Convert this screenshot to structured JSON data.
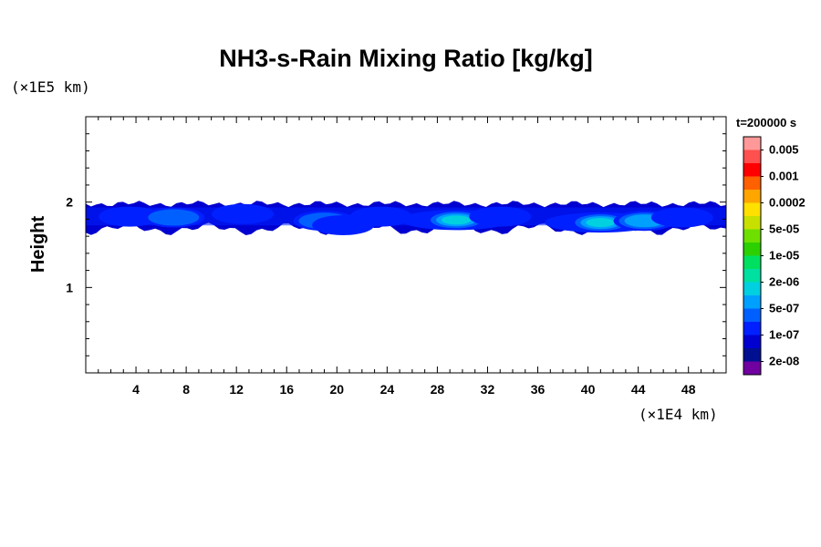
{
  "chart_data": {
    "type": "heatmap",
    "title": "NH3-s-Rain Mixing Ratio [kg/kg]",
    "xlabel": "",
    "ylabel": "Height",
    "x_unit": "(×1E4 km)",
    "y_unit": "(×1E5 km)",
    "time_label": "t=200000 s",
    "xlim": [
      0,
      51
    ],
    "ylim": [
      0,
      3
    ],
    "x_ticks": [
      4,
      8,
      12,
      16,
      20,
      24,
      28,
      32,
      36,
      40,
      44,
      48
    ],
    "y_ticks": [
      1,
      2
    ],
    "colorbar": {
      "labels": [
        "0.005",
        "0.001",
        "0.0002",
        "5e-05",
        "1e-05",
        "2e-06",
        "5e-07",
        "1e-07",
        "2e-08"
      ],
      "colors": [
        "#ff9999",
        "#ff5050",
        "#ff0000",
        "#ff6000",
        "#ffa500",
        "#ffe000",
        "#c8e000",
        "#6ee000",
        "#2cd000",
        "#00e060",
        "#00e0a0",
        "#00d0e0",
        "#00a0ff",
        "#0060ff",
        "#0020ff",
        "#0000d0",
        "#001090",
        "#7000a0"
      ]
    },
    "layer": {
      "top_height": 1.98,
      "bottom_height": 1.62
    },
    "cells": [
      {
        "x": 3.5,
        "y": 1.83,
        "level": 3
      },
      {
        "x": 7.0,
        "y": 1.82,
        "level": 4
      },
      {
        "x": 10.5,
        "y": 1.84,
        "level": 2
      },
      {
        "x": 12.5,
        "y": 1.86,
        "level": 3
      },
      {
        "x": 16.0,
        "y": 1.87,
        "level": 2
      },
      {
        "x": 19.0,
        "y": 1.78,
        "level": 4
      },
      {
        "x": 20.5,
        "y": 1.73,
        "level": 3
      },
      {
        "x": 23.5,
        "y": 1.83,
        "level": 3
      },
      {
        "x": 26.0,
        "y": 1.83,
        "level": 2
      },
      {
        "x": 29.5,
        "y": 1.79,
        "level": 6
      },
      {
        "x": 33.0,
        "y": 1.83,
        "level": 3
      },
      {
        "x": 36.5,
        "y": 1.84,
        "level": 2
      },
      {
        "x": 41.0,
        "y": 1.76,
        "level": 6
      },
      {
        "x": 44.5,
        "y": 1.78,
        "level": 5
      },
      {
        "x": 47.5,
        "y": 1.82,
        "level": 3
      },
      {
        "x": 49.5,
        "y": 1.84,
        "level": 2
      }
    ]
  }
}
